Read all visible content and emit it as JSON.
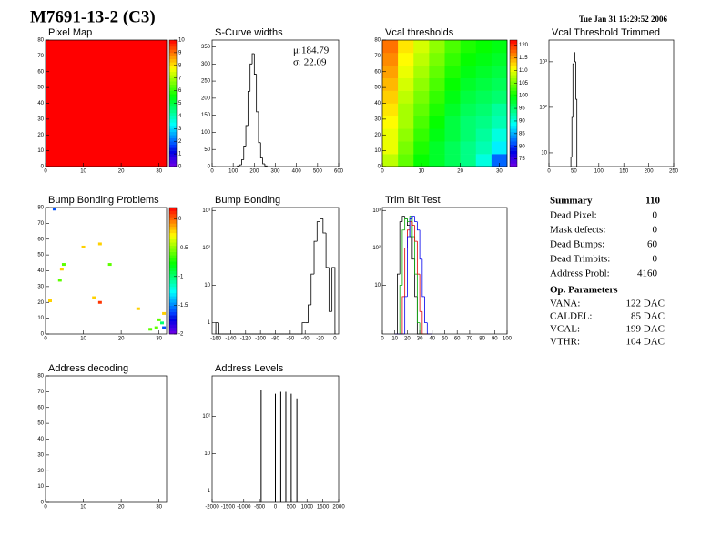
{
  "header": {
    "title": "M7691-13-2 (C3)",
    "date": "Tue Jan 31 15:29:52 2006"
  },
  "chart_data": [
    {
      "type": "heatmap",
      "title": "Pixel Map",
      "xlim": [
        0,
        32
      ],
      "ylim": [
        0,
        80
      ],
      "xticks": [
        0,
        10,
        20,
        30
      ],
      "yticks": [
        0,
        10,
        20,
        30,
        40,
        50,
        60,
        70,
        80
      ],
      "zlim": [
        0,
        10
      ],
      "zticks": [
        0,
        1,
        2,
        3,
        4,
        5,
        6,
        7,
        8,
        9,
        10
      ],
      "z": [
        [
          10
        ]
      ]
    },
    {
      "type": "histogram",
      "title": "S-Curve widths",
      "annotations": [
        "μ:184.79",
        "σ: 22.09"
      ],
      "xlim": [
        0,
        600
      ],
      "ylim": [
        0,
        370
      ],
      "xticks": [
        0,
        100,
        200,
        300,
        400,
        500,
        600
      ],
      "yticks": [
        0,
        50,
        100,
        150,
        200,
        250,
        300,
        350
      ],
      "color": "#000000",
      "bins": [
        120,
        130,
        140,
        150,
        160,
        170,
        180,
        190,
        200,
        210,
        220,
        230,
        240,
        250,
        260
      ],
      "values": [
        2,
        5,
        20,
        60,
        120,
        220,
        300,
        330,
        270,
        160,
        70,
        25,
        8,
        2
      ]
    },
    {
      "type": "heatmap",
      "title": "Vcal thresholds",
      "xlim": [
        0,
        32
      ],
      "ylim": [
        0,
        80
      ],
      "xticks": [
        0,
        10,
        20,
        30
      ],
      "yticks": [
        0,
        10,
        20,
        30,
        40,
        50,
        60,
        70,
        80
      ],
      "zlim": [
        72,
        122
      ],
      "zticks": [
        75,
        80,
        85,
        90,
        95,
        100,
        105,
        110,
        115,
        120
      ],
      "z": [
        [
          108,
          104,
          100,
          98,
          96,
          94,
          90,
          82
        ],
        [
          110,
          105,
          101,
          98,
          96,
          94,
          92,
          88
        ],
        [
          110,
          106,
          102,
          99,
          97,
          95,
          93,
          90
        ],
        [
          111,
          107,
          103,
          100,
          97,
          95,
          94,
          92
        ],
        [
          112,
          107,
          104,
          101,
          98,
          96,
          95,
          93
        ],
        [
          113,
          108,
          105,
          102,
          99,
          97,
          96,
          95
        ],
        [
          114,
          109,
          106,
          103,
          100,
          98,
          97,
          96
        ],
        [
          115,
          110,
          107,
          104,
          101,
          99,
          98,
          97
        ],
        [
          116,
          111,
          108,
          105,
          102,
          100,
          99,
          98
        ],
        [
          117,
          112,
          109,
          106,
          103,
          101,
          100,
          99
        ]
      ]
    },
    {
      "type": "histogram",
      "title": "Vcal Threshold Trimmed",
      "log_y": true,
      "xlim": [
        0,
        250
      ],
      "ylim": [
        5,
        3000
      ],
      "xticks": [
        0,
        50,
        100,
        150,
        200,
        250
      ],
      "yticks": [
        {
          "value": 10,
          "label": "10"
        },
        {
          "value": 100,
          "label": "10²"
        },
        {
          "value": 1000,
          "label": "10³"
        }
      ],
      "color": "#000000",
      "bins": [
        44,
        46,
        48,
        50,
        52,
        54,
        56
      ],
      "values": [
        8,
        60,
        900,
        1600,
        1000,
        150
      ]
    },
    {
      "type": "scatter",
      "title": "Bump Bonding Problems",
      "xlim": [
        0,
        32
      ],
      "ylim": [
        0,
        80
      ],
      "xticks": [
        0,
        10,
        20,
        30
      ],
      "yticks": [
        0,
        10,
        20,
        30,
        40,
        50,
        60,
        70,
        80
      ],
      "zlim": [
        -2,
        0.2
      ],
      "zticks": [
        -2,
        -1.5,
        -1,
        -0.5,
        0
      ],
      "x": [
        2.4,
        10,
        14.4,
        4.8,
        4.3,
        17,
        3.8,
        12.8,
        14.4,
        1.2,
        24.5,
        31.3,
        30,
        30.8,
        29.3,
        27.7,
        31.3
      ],
      "y": [
        79,
        55,
        57,
        44,
        41,
        44,
        34,
        23,
        20,
        21,
        16,
        13,
        9,
        7,
        4,
        3,
        4
      ],
      "z": [
        -1.6,
        -0.2,
        -0.2,
        -0.6,
        -0.2,
        -0.6,
        -0.6,
        -0.2,
        0.1,
        -0.2,
        -0.2,
        -0.2,
        -0.6,
        -1,
        -0.6,
        -0.6,
        -1.6
      ]
    },
    {
      "type": "histogram",
      "title": "Bump Bonding",
      "log_y": true,
      "xlim": [
        -165,
        5
      ],
      "ylim": [
        0.5,
        1200
      ],
      "xticks": [
        -160,
        -140,
        -120,
        -100,
        -80,
        -60,
        -40,
        -20,
        0
      ],
      "yticks": [
        {
          "value": 1,
          "label": "1"
        },
        {
          "value": 10,
          "label": "10"
        },
        {
          "value": 100,
          "label": "10²"
        },
        {
          "value": 1000,
          "label": "10³"
        }
      ],
      "color": "#000000",
      "bins": [
        -160,
        -156,
        -152,
        -148,
        -144,
        -140,
        -136,
        -132,
        -128,
        -124,
        -120,
        -116,
        -112,
        -108,
        -104,
        -100,
        -96,
        -92,
        -88,
        -84,
        -80,
        -76,
        -72,
        -68,
        -64,
        -60,
        -56,
        -52,
        -48,
        -44,
        -40,
        -36,
        -32,
        -28,
        -24,
        -20,
        -16,
        -12,
        -8,
        -4,
        0
      ],
      "values": [
        1,
        0,
        0,
        0,
        0,
        0,
        0,
        0,
        0,
        0,
        0,
        0,
        0,
        0,
        0,
        0,
        0,
        0,
        0,
        0,
        0,
        0,
        0,
        0,
        0,
        0,
        0,
        0,
        0,
        1,
        1,
        3,
        20,
        150,
        500,
        600,
        250,
        30,
        2,
        30
      ]
    },
    {
      "type": "histogram",
      "title": "Trim Bit Test",
      "log_y": true,
      "xlim": [
        0,
        100
      ],
      "ylim": [
        0.5,
        1200
      ],
      "xticks": [
        0,
        10,
        20,
        30,
        40,
        50,
        60,
        70,
        80,
        90,
        100
      ],
      "yticks": [
        {
          "value": 10,
          "label": "10"
        },
        {
          "value": 100,
          "label": "10²"
        },
        {
          "value": 1000,
          "label": "10³"
        }
      ],
      "bins": [
        10,
        12,
        14,
        16,
        18,
        20,
        22,
        24,
        26,
        28,
        30,
        32,
        34,
        36,
        38,
        40
      ],
      "series": [
        {
          "color": "#000000",
          "values": [
            0,
            20,
            500,
            700,
            600,
            400,
            200,
            50,
            5,
            0,
            0,
            0,
            0,
            0,
            0
          ]
        },
        {
          "color": "#00aa00",
          "values": [
            0,
            0,
            10,
            300,
            600,
            500,
            700,
            200,
            20,
            1,
            0,
            0,
            0,
            0,
            0
          ]
        },
        {
          "color": "#dd0000",
          "values": [
            0,
            0,
            0,
            5,
            100,
            300,
            500,
            400,
            150,
            20,
            2,
            0,
            0,
            0,
            0
          ]
        },
        {
          "color": "#0000ee",
          "values": [
            0,
            0,
            0,
            0,
            5,
            200,
            600,
            700,
            500,
            300,
            50,
            5,
            1,
            0,
            0
          ]
        }
      ]
    },
    {
      "type": "heatmap",
      "title": "Address decoding",
      "xlim": [
        0,
        32
      ],
      "ylim": [
        0,
        80
      ],
      "xticks": [
        0,
        10,
        20,
        30
      ],
      "yticks": [
        0,
        10,
        20,
        30,
        40,
        50,
        60,
        70,
        80
      ]
    },
    {
      "type": "spike",
      "title": "Address Levels",
      "log_y": true,
      "xlim": [
        -2000,
        2000
      ],
      "ylim": [
        0.5,
        1200
      ],
      "xticks": [
        -2000,
        -1500,
        -1000,
        -500,
        0,
        500,
        1000,
        1500,
        2000
      ],
      "yticks": [
        {
          "value": 1,
          "label": "1"
        },
        {
          "value": 10,
          "label": "10"
        },
        {
          "value": 100,
          "label": "10²"
        }
      ],
      "color": "#000000",
      "x": [
        -450,
        0,
        170,
        330,
        500,
        680
      ],
      "values": [
        500,
        400,
        450,
        450,
        400,
        300
      ]
    }
  ],
  "summary": {
    "title": "Summary",
    "total": 110,
    "rows": [
      [
        "Dead Pixel:",
        0
      ],
      [
        "Mask defects:",
        0
      ],
      [
        "Dead Bumps:",
        60
      ],
      [
        "Dead Trimbits:",
        0
      ],
      [
        "Address Probl:",
        4160
      ]
    ]
  },
  "op_parameters": {
    "title": "Op. Parameters",
    "rows": [
      [
        "VANA:",
        "122 DAC"
      ],
      [
        "CALDEL:",
        "85 DAC"
      ],
      [
        "VCAL:",
        "199 DAC"
      ],
      [
        "VTHR:",
        "104 DAC"
      ]
    ]
  }
}
